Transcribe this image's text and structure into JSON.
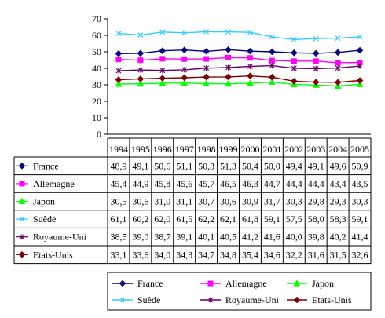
{
  "chart_data": {
    "type": "line",
    "title": "",
    "xlabel": "",
    "ylabel": "",
    "ylim": [
      0,
      70
    ],
    "yticks": [
      "0",
      "10",
      "20",
      "30",
      "40",
      "50",
      "60",
      "70"
    ],
    "grid": false,
    "categories": [
      "1994",
      "1995",
      "1996",
      "1997",
      "1998",
      "1999",
      "2000",
      "2001",
      "2002",
      "2003",
      "2004",
      "2005"
    ],
    "series": [
      {
        "name": "France",
        "color": "#000080",
        "marker": "diamond",
        "values": [
          48.9,
          49.1,
          50.6,
          51.1,
          50.3,
          51.3,
          50.4,
          50.0,
          49.4,
          49.1,
          49.6,
          50.9
        ],
        "labels": [
          "48,9",
          "49,1",
          "50,6",
          "51,1",
          "50,3",
          "51,3",
          "50,4",
          "50,0",
          "49,4",
          "49,1",
          "49,6",
          "50,9"
        ]
      },
      {
        "name": "Allemagne",
        "color": "#ff00ff",
        "marker": "square",
        "values": [
          45.4,
          44.9,
          45.8,
          45.6,
          45.7,
          46.5,
          46.3,
          44.7,
          44.4,
          44.4,
          43.4,
          43.5
        ],
        "labels": [
          "45,4",
          "44,9",
          "45,8",
          "45,6",
          "45,7",
          "46,5",
          "46,3",
          "44,7",
          "44,4",
          "44,4",
          "43,4",
          "43,5"
        ]
      },
      {
        "name": "Japon",
        "color": "#00ff00",
        "marker": "triangle",
        "values": [
          30.5,
          30.6,
          31.0,
          31.1,
          30.7,
          30.6,
          30.9,
          31.7,
          30.3,
          29.8,
          29.3,
          30.3
        ],
        "labels": [
          "30,5",
          "30,6",
          "31,0",
          "31,1",
          "30,7",
          "30,6",
          "30,9",
          "31,7",
          "30,3",
          "29,8",
          "29,3",
          "30,3"
        ]
      },
      {
        "name": "Suède",
        "color": "#33ccff",
        "marker": "x",
        "values": [
          61.1,
          60.2,
          62.0,
          61.5,
          62.2,
          62.1,
          61.8,
          59.1,
          57.5,
          58.0,
          58.3,
          59.1
        ],
        "labels": [
          "61,1",
          "60,2",
          "62,0",
          "61,5",
          "62,2",
          "62,1",
          "61,8",
          "59,1",
          "57,5",
          "58,0",
          "58,3",
          "59,1"
        ]
      },
      {
        "name": "Royaume-Uni",
        "color": "#660066",
        "marker": "star",
        "values": [
          38.5,
          39.0,
          38.7,
          39.1,
          40.1,
          40.5,
          41.2,
          41.6,
          40.0,
          39.8,
          40.2,
          41.4
        ],
        "labels": [
          "38,5",
          "39,0",
          "38,7",
          "39,1",
          "40,1",
          "40,5",
          "41,2",
          "41,6",
          "40,0",
          "39,8",
          "40,2",
          "41,4"
        ]
      },
      {
        "name": "Etats-Unis",
        "color": "#800000",
        "marker": "diamond",
        "values": [
          33.1,
          33.6,
          34.0,
          34.3,
          34.7,
          34.8,
          35.4,
          34.6,
          32.2,
          31.6,
          31.5,
          32.6
        ],
        "labels": [
          "33,1",
          "33,6",
          "34,0",
          "34,3",
          "34,7",
          "34,8",
          "35,4",
          "34,6",
          "32,2",
          "31,6",
          "31,5",
          "32,6"
        ]
      }
    ]
  }
}
